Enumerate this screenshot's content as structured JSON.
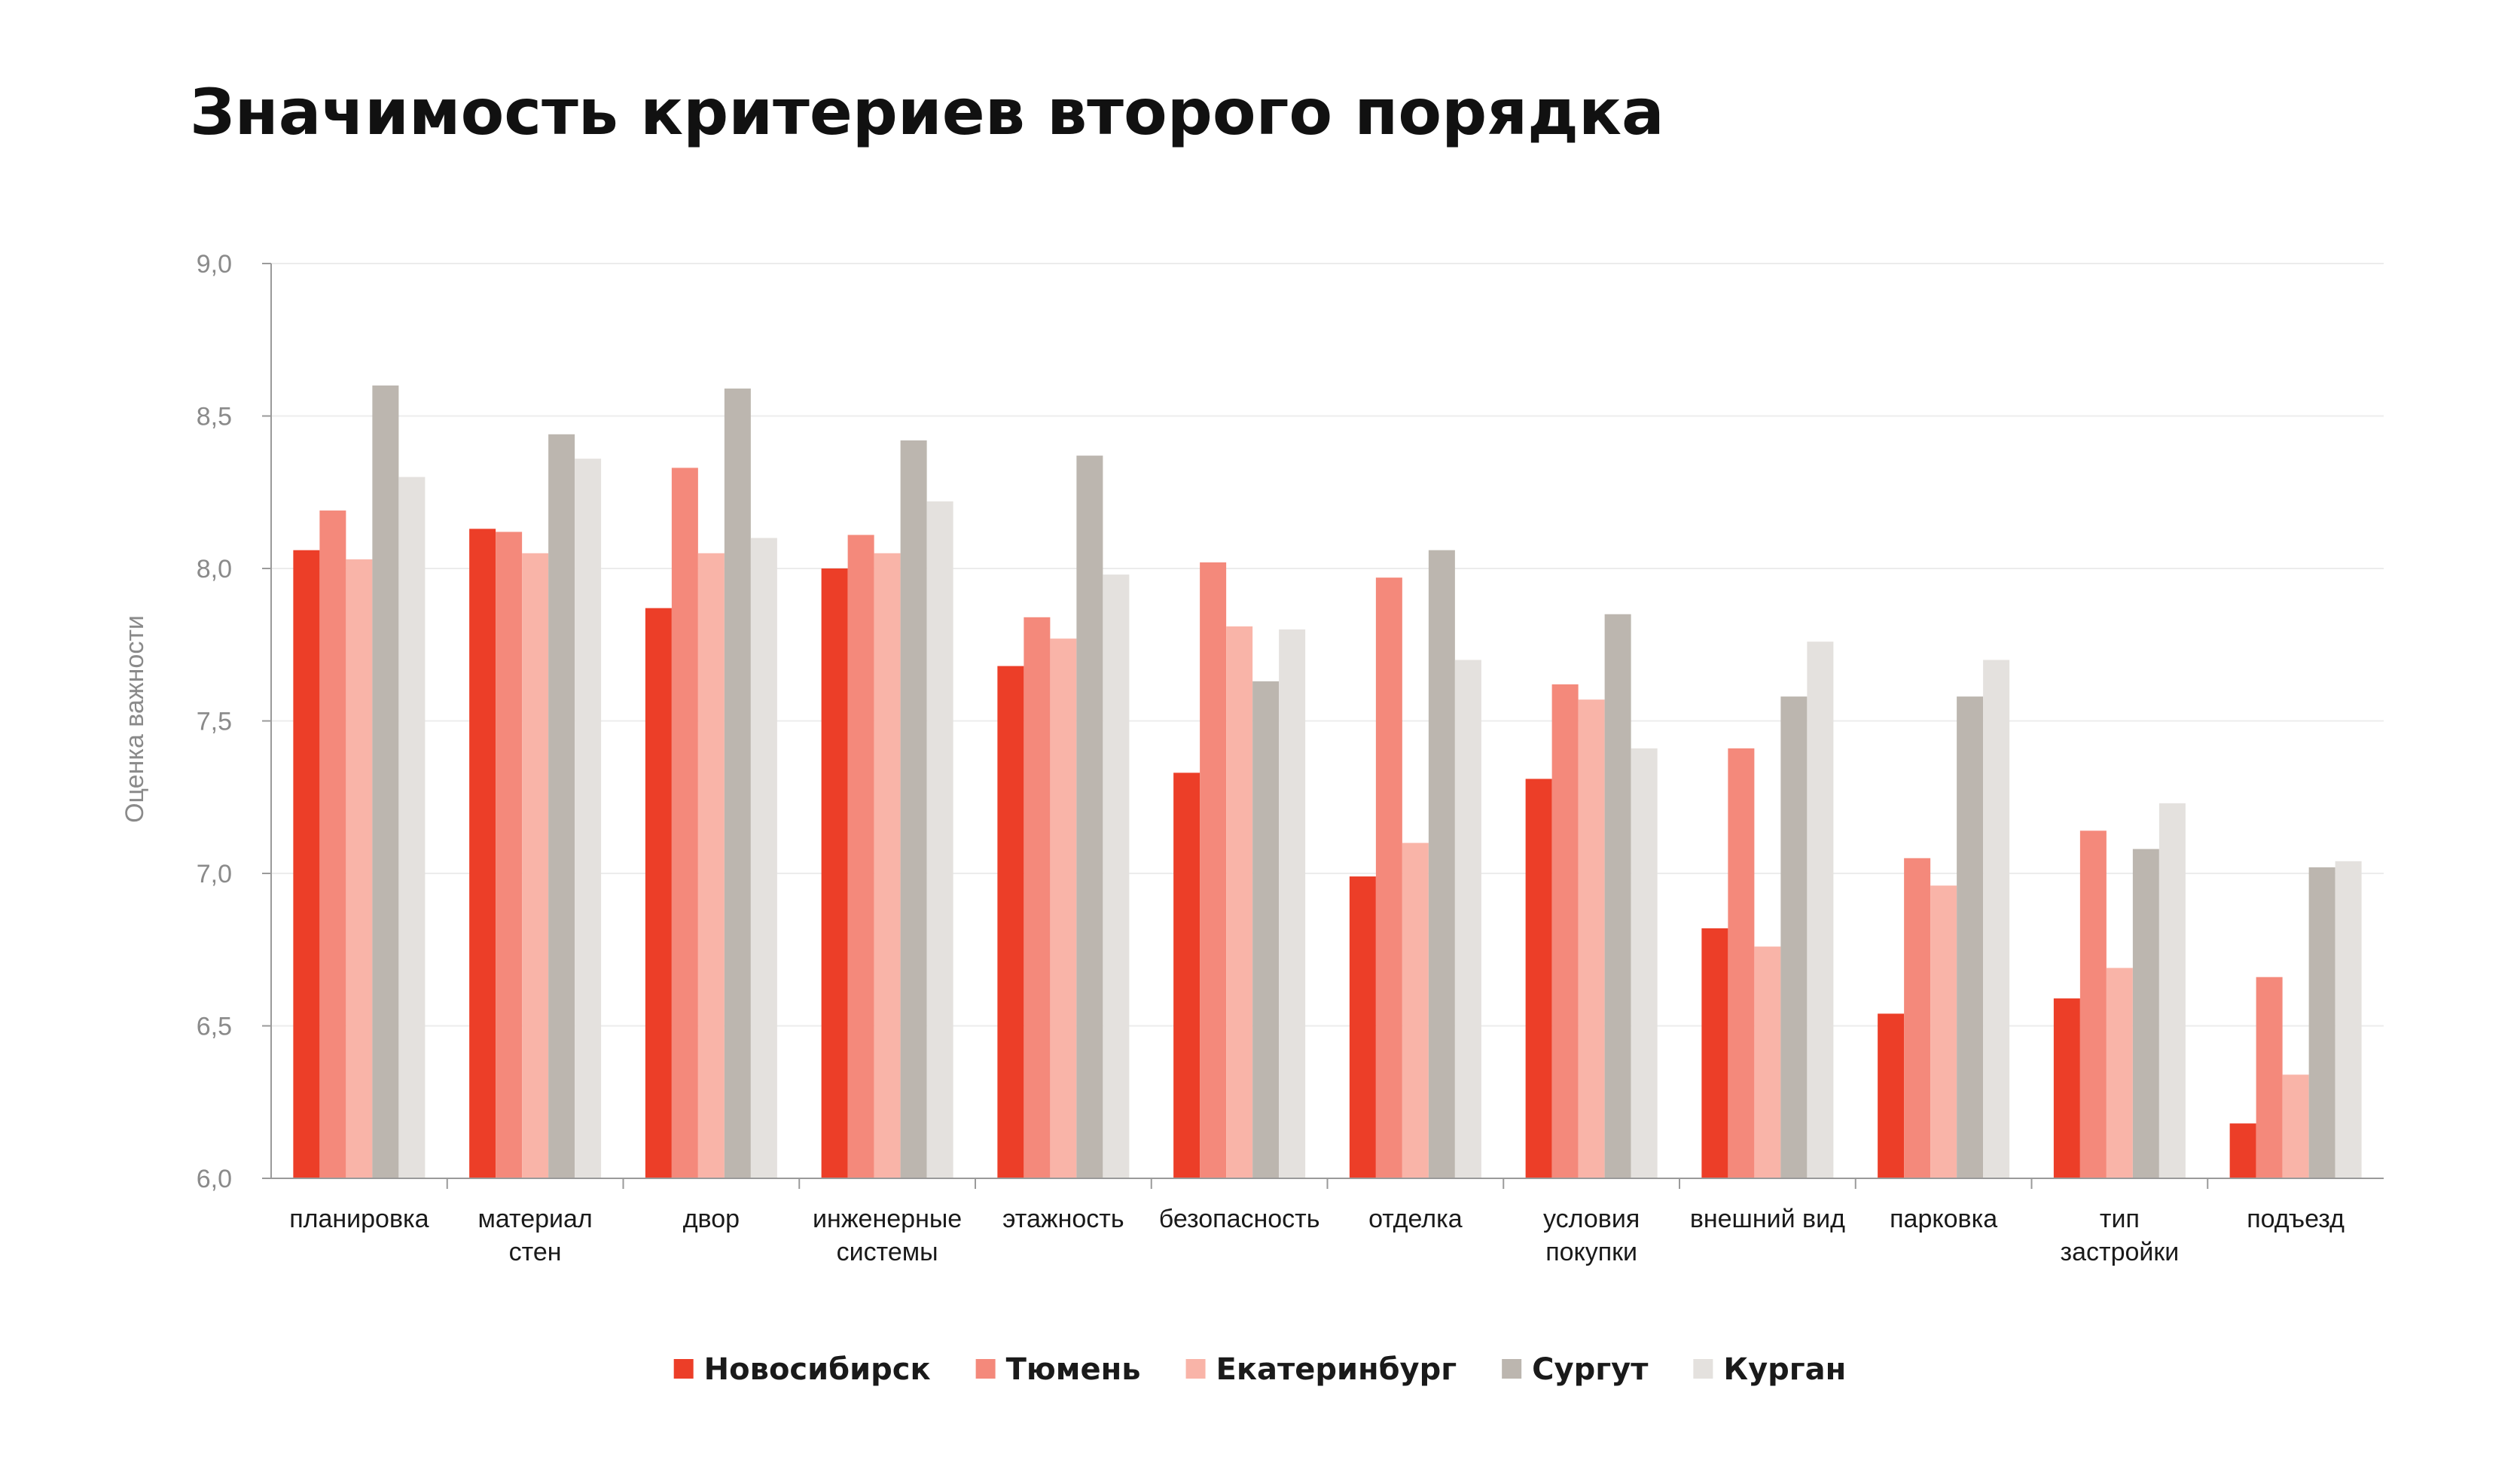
{
  "chart_data": {
    "type": "bar",
    "title": "Значимость критериев второго порядка",
    "ylabel": "Оценка важности",
    "ylim": [
      6.0,
      9.0
    ],
    "yticks": [
      "6,0",
      "6,5",
      "7,0",
      "7,5",
      "8,0",
      "8,5",
      "9,0"
    ],
    "ytick_values": [
      6.0,
      6.5,
      7.0,
      7.5,
      8.0,
      8.5,
      9.0
    ],
    "grid": true,
    "legend_position": "bottom",
    "categories": [
      [
        "планировка"
      ],
      [
        "материал",
        "стен"
      ],
      [
        "двор"
      ],
      [
        "инженерные",
        "системы"
      ],
      [
        "этажность"
      ],
      [
        "безопасность"
      ],
      [
        "отделка"
      ],
      [
        "условия",
        "покупки"
      ],
      [
        "внешний вид"
      ],
      [
        "парковка"
      ],
      [
        "тип",
        "застройки"
      ],
      [
        "подъезд"
      ]
    ],
    "series": [
      {
        "name": "Новосибирск",
        "color": "#ec3e28",
        "values": [
          8.06,
          8.13,
          7.87,
          8.0,
          7.68,
          7.33,
          6.99,
          7.31,
          6.82,
          6.54,
          6.59,
          6.18
        ]
      },
      {
        "name": "Тюмень",
        "color": "#f4897b",
        "values": [
          8.19,
          8.12,
          8.33,
          8.11,
          7.84,
          8.02,
          7.97,
          7.62,
          7.41,
          7.05,
          7.14,
          6.66
        ]
      },
      {
        "name": "Екатеринбург",
        "color": "#f9b4a8",
        "values": [
          8.03,
          8.05,
          8.05,
          8.05,
          7.77,
          7.81,
          7.1,
          7.57,
          6.76,
          6.96,
          6.69,
          6.34
        ]
      },
      {
        "name": "Сургут",
        "color": "#bcb6af",
        "values": [
          8.6,
          8.44,
          8.59,
          8.42,
          8.37,
          7.63,
          8.06,
          7.85,
          7.58,
          7.58,
          7.08,
          7.02
        ]
      },
      {
        "name": "Курган",
        "color": "#e4e1de",
        "values": [
          8.3,
          8.36,
          8.1,
          8.22,
          7.98,
          7.8,
          7.7,
          7.41,
          7.76,
          7.7,
          7.23,
          7.04
        ]
      }
    ]
  }
}
